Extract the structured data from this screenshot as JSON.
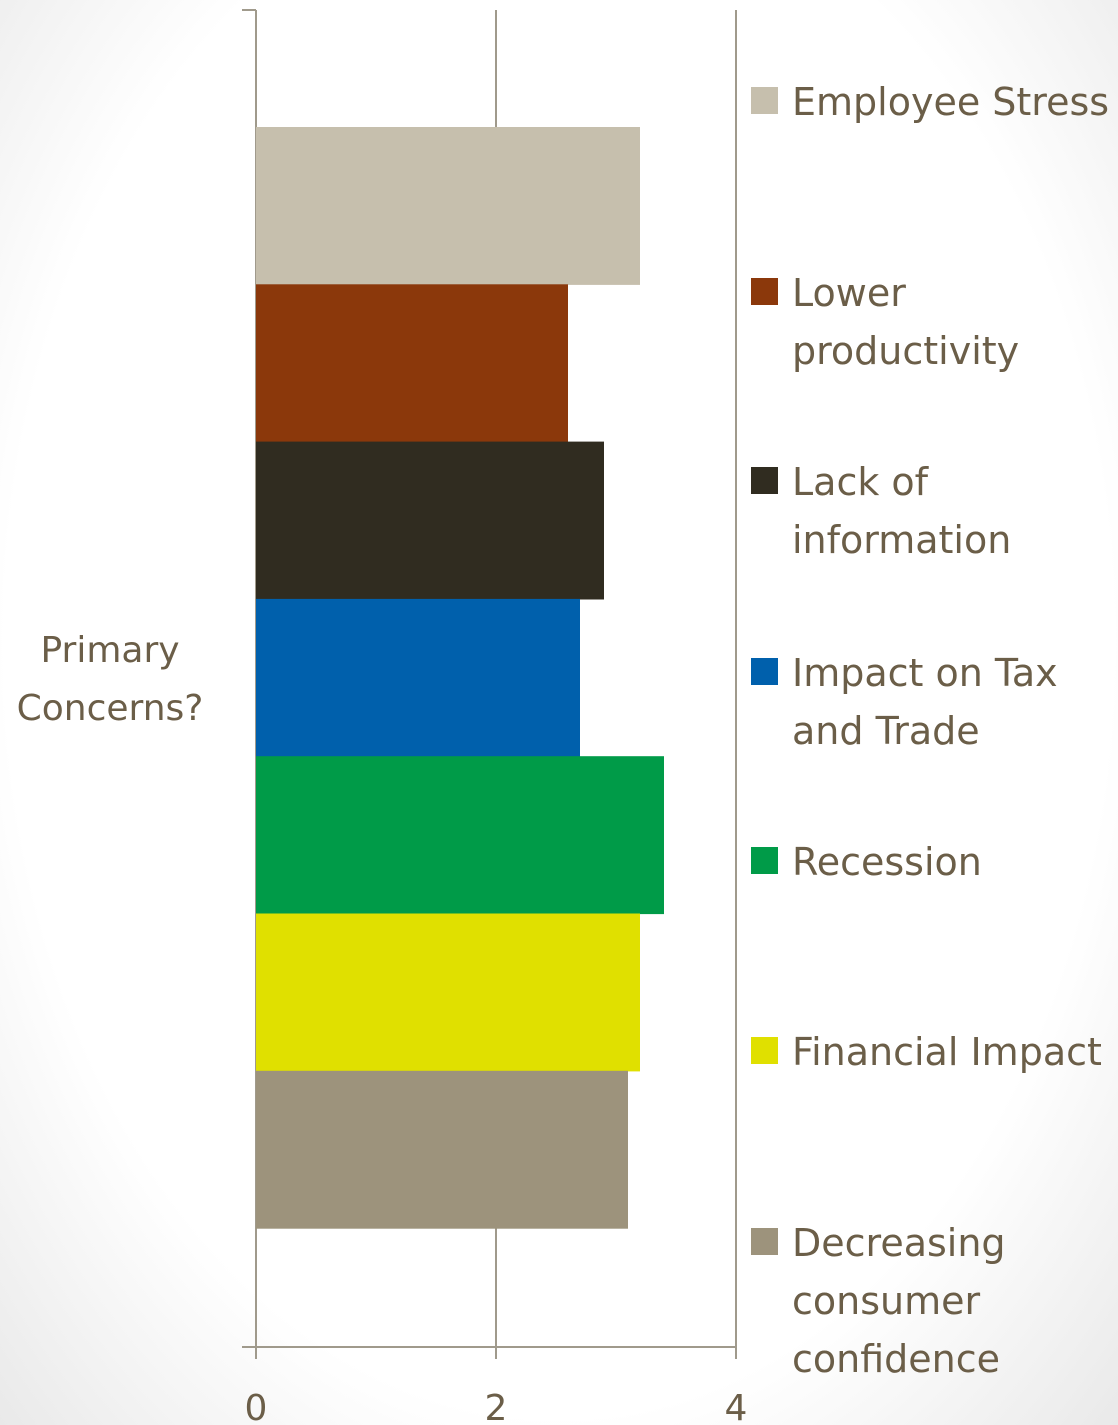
{
  "chart_data": {
    "type": "bar",
    "orientation": "horizontal",
    "category": "Primary Concerns?",
    "categories": [
      "Primary Concerns?"
    ],
    "series": [
      {
        "name": "Employee Stress",
        "values": [
          3.2
        ],
        "color": "#c6bfad"
      },
      {
        "name": "Lower productivity",
        "values": [
          2.6
        ],
        "color": "#8b380b"
      },
      {
        "name": "Lack of information",
        "values": [
          2.9
        ],
        "color": "#302c20"
      },
      {
        "name": "Impact on Tax and Trade",
        "values": [
          2.7
        ],
        "color": "#0060ac"
      },
      {
        "name": "Recession",
        "values": [
          3.4
        ],
        "color": "#009b48"
      },
      {
        "name": "Financial Impact",
        "values": [
          3.2
        ],
        "color": "#e0e000"
      },
      {
        "name": "Decreasing consumer confidence",
        "values": [
          3.1
        ],
        "color": "#9d937c"
      }
    ],
    "x_ticks": [
      "0",
      "2",
      "4"
    ],
    "xlim": [
      0,
      4
    ],
    "grid": true,
    "legend_position": "right",
    "title": "",
    "xlabel": "",
    "ylabel": ""
  },
  "text_color": "#6b5e48",
  "grid_color": "#a09a8c"
}
